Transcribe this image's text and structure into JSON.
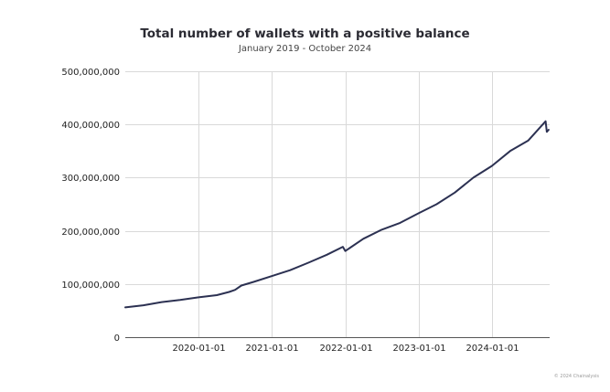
{
  "chart_data": {
    "type": "line",
    "title": "Total number of wallets with a positive balance",
    "subtitle": "January 2019 - October 2024",
    "xlabel": "",
    "ylabel": "",
    "ylim": [
      0,
      500000000
    ],
    "y_ticks": [
      0,
      100000000,
      200000000,
      300000000,
      400000000,
      500000000
    ],
    "y_tick_labels": [
      "0",
      "100,000,000",
      "200,000,000",
      "300,000,000",
      "400,000,000",
      "500,000,000"
    ],
    "xlim": [
      "2019-01-01",
      "2024-10-15"
    ],
    "x_ticks": [
      "2020-01-01",
      "2021-01-01",
      "2022-01-01",
      "2023-01-01",
      "2024-01-01"
    ],
    "grid": "vertical and horizontal",
    "line_color": "#2c3152",
    "series": [
      {
        "x": [
          "2019-01-01",
          "2019-04-01",
          "2019-07-01",
          "2019-10-01",
          "2020-01-01",
          "2020-04-01",
          "2020-06-01",
          "2020-07-01",
          "2020-08-01",
          "2020-10-01",
          "2021-01-01",
          "2021-04-01",
          "2021-07-01",
          "2021-10-01",
          "2021-12-20",
          "2022-01-01",
          "2022-04-01",
          "2022-07-01",
          "2022-10-01",
          "2023-01-01",
          "2023-04-01",
          "2023-07-01",
          "2023-10-01",
          "2024-01-01",
          "2024-04-01",
          "2024-07-01",
          "2024-09-25",
          "2024-10-01",
          "2024-10-10"
        ],
        "values": [
          56000000,
          60000000,
          66000000,
          70000000,
          75000000,
          79000000,
          85000000,
          89000000,
          97000000,
          104000000,
          115000000,
          126000000,
          140000000,
          155000000,
          170000000,
          162000000,
          185000000,
          202000000,
          215000000,
          233000000,
          250000000,
          272000000,
          300000000,
          322000000,
          350000000,
          370000000,
          406000000,
          386000000,
          390000000
        ]
      }
    ]
  },
  "footer": {
    "credit": "© 2024 Chainalysis"
  }
}
